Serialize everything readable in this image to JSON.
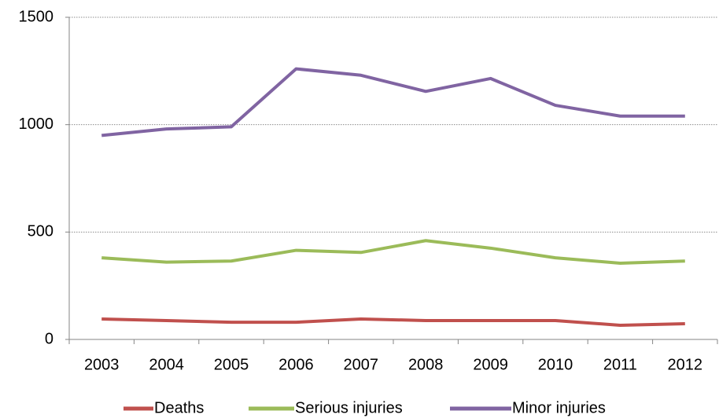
{
  "chart_data": {
    "type": "line",
    "categories": [
      "2003",
      "2004",
      "2005",
      "2006",
      "2007",
      "2008",
      "2009",
      "2010",
      "2011",
      "2012"
    ],
    "series": [
      {
        "name": "Deaths",
        "color": "#c0504d",
        "values": [
          95,
          88,
          80,
          80,
          95,
          88,
          88,
          88,
          66,
          73
        ]
      },
      {
        "name": "Serious injuries",
        "color": "#9bbb59",
        "values": [
          380,
          360,
          365,
          415,
          405,
          460,
          425,
          380,
          355,
          365
        ]
      },
      {
        "name": "Minor injuries",
        "color": "#8064a2",
        "values": [
          950,
          980,
          990,
          1260,
          1230,
          1155,
          1215,
          1090,
          1040,
          1040
        ]
      }
    ],
    "ylim": [
      0,
      1500
    ],
    "yticks": [
      0,
      500,
      1000,
      1500
    ],
    "grid": true,
    "legend": "bottom"
  }
}
